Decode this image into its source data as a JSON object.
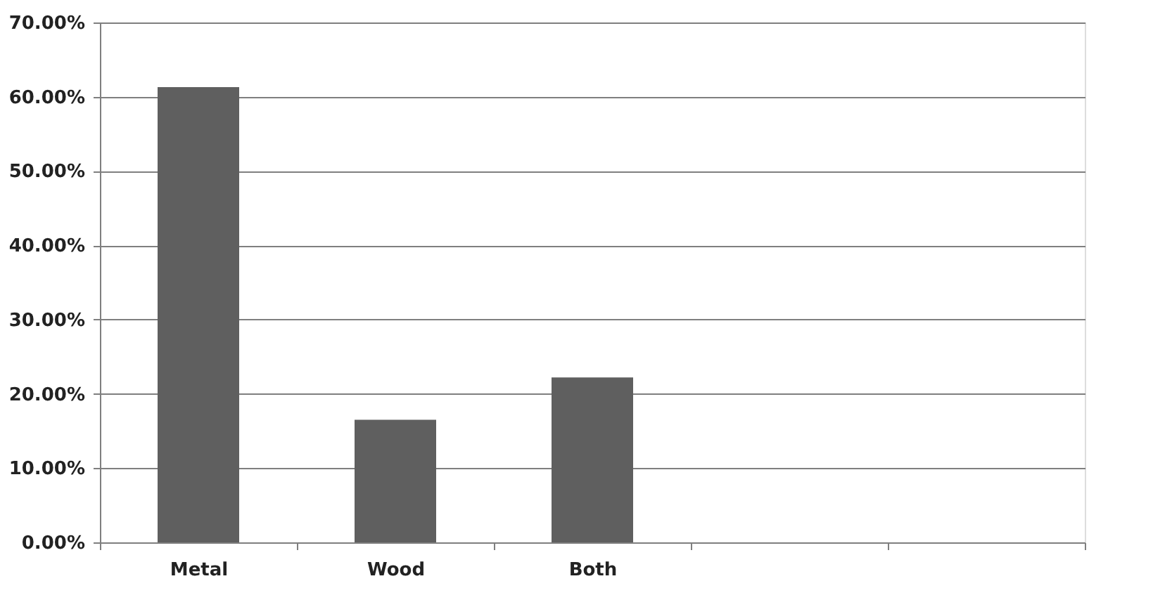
{
  "chart_data": {
    "type": "bar",
    "categories": [
      "Metal",
      "Wood",
      "Both",
      null,
      null
    ],
    "values": [
      61.3,
      16.5,
      22.2,
      null,
      null
    ],
    "color": "#5f5f5f",
    "ylim": [
      0,
      70
    ],
    "yticks": [
      {
        "value": 0,
        "label": "0.00%"
      },
      {
        "value": 10,
        "label": "10.00%"
      },
      {
        "value": 20,
        "label": "20.00%"
      },
      {
        "value": 30,
        "label": "30.00%"
      },
      {
        "value": 40,
        "label": "40.00%"
      },
      {
        "value": 50,
        "label": "50.00%"
      },
      {
        "value": 60,
        "label": "60.00%"
      },
      {
        "value": 70,
        "label": "70.00%"
      }
    ],
    "grid": "y"
  }
}
